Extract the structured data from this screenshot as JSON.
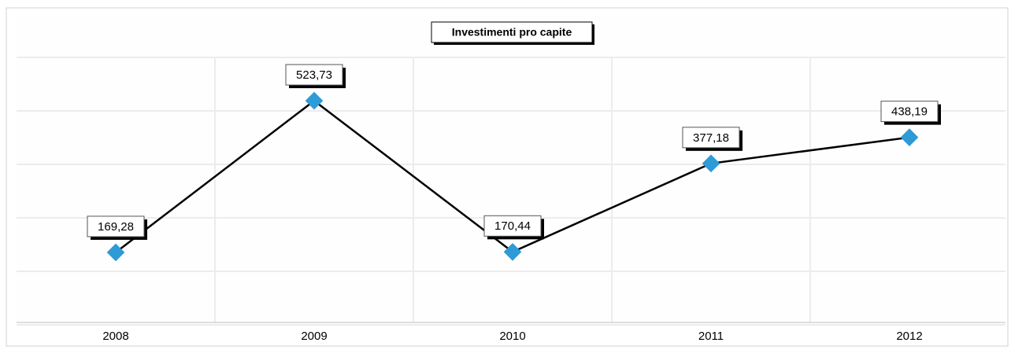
{
  "chart_data": {
    "type": "line",
    "title": "Investimenti pro capite",
    "categories": [
      "2008",
      "2009",
      "2010",
      "2011",
      "2012"
    ],
    "values": [
      169.28,
      523.73,
      170.44,
      377.18,
      438.19
    ],
    "value_labels": [
      "169,28",
      "523,73",
      "170,44",
      "377,18",
      "438,19"
    ],
    "color": "#000000",
    "marker_color": "#2e9ad6",
    "ylim": [
      0,
      625
    ],
    "yticks": [
      0,
      125,
      250,
      375,
      500,
      625
    ],
    "grid": true
  }
}
